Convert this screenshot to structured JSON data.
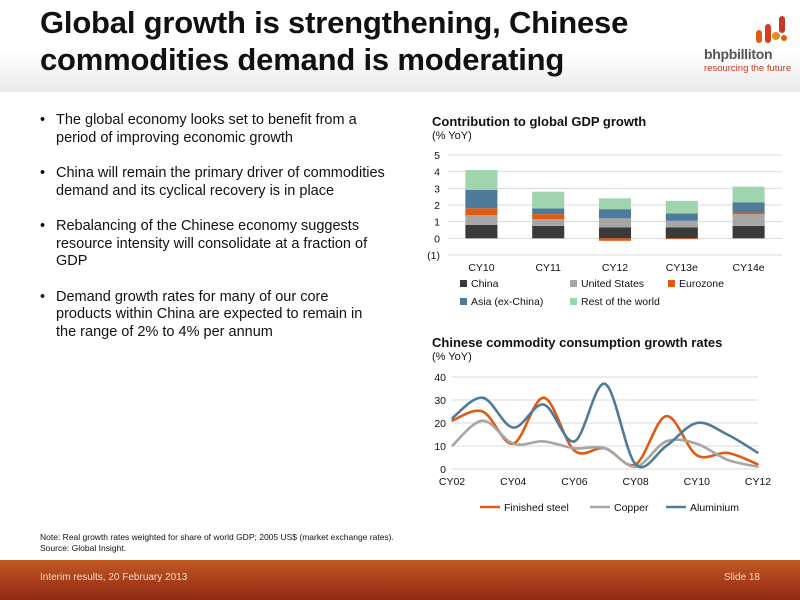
{
  "header": {
    "title": "Global growth is strengthening, Chinese commodities demand is moderating",
    "logo_word": "bhpbilliton",
    "logo_tagline": "resourcing the future"
  },
  "bullets": [
    "The global economy looks set to benefit from a period of improving economic growth",
    "China will remain the primary driver of commodities demand and its cyclical recovery is in place",
    "Rebalancing of the Chinese economy suggests resource intensity will consolidate at a fraction of GDP",
    "Demand growth rates for many of our core products within China are expected to remain in the range of 2% to 4% per annum"
  ],
  "chart_data": [
    {
      "type": "bar",
      "stacked": true,
      "title": "Contribution to global GDP growth",
      "ylabel": "(% YoY)",
      "categories": [
        "CY10",
        "CY11",
        "CY12",
        "CY13e",
        "CY14e"
      ],
      "ylim": [
        -1,
        5
      ],
      "yticks": [
        "(1)",
        "0",
        "1",
        "2",
        "3",
        "4",
        "5"
      ],
      "grid": true,
      "legend_position": "bottom",
      "series": [
        {
          "name": "China",
          "color": "#3a3a3a",
          "values": [
            0.8,
            0.75,
            0.65,
            0.65,
            0.75
          ]
        },
        {
          "name": "United States",
          "color": "#a6a6a6",
          "values": [
            0.6,
            0.4,
            0.55,
            0.4,
            0.7
          ]
        },
        {
          "name": "Eurozone",
          "color": "#e05a10",
          "values": [
            0.4,
            0.3,
            -0.15,
            -0.05,
            0.1
          ]
        },
        {
          "name": "Asia (ex-China)",
          "color": "#4f7b9a",
          "values": [
            1.1,
            0.35,
            0.55,
            0.45,
            0.6
          ]
        },
        {
          "name": "Rest of the world",
          "color": "#9fd4ae",
          "values": [
            1.2,
            1.0,
            0.65,
            0.75,
            0.95
          ]
        }
      ]
    },
    {
      "type": "line",
      "title": "Chinese commodity consumption growth rates",
      "ylabel": "(% YoY)",
      "x": [
        "CY02",
        "CY03",
        "CY04",
        "CY05",
        "CY06",
        "CY07",
        "CY08",
        "CY09",
        "CY10",
        "CY11",
        "CY12"
      ],
      "x_tick_labels": [
        "CY02",
        "CY04",
        "CY06",
        "CY08",
        "CY10",
        "CY12"
      ],
      "ylim": [
        0,
        40
      ],
      "yticks": [
        "0",
        "10",
        "20",
        "30",
        "40"
      ],
      "grid": true,
      "legend_position": "bottom",
      "series": [
        {
          "name": "Finished steel",
          "color": "#e05a10",
          "values": [
            21,
            25,
            11,
            31,
            8,
            9,
            2,
            23,
            6,
            7,
            2
          ]
        },
        {
          "name": "Copper",
          "color": "#a6a6a6",
          "values": [
            10,
            21,
            11,
            12,
            9,
            9,
            1,
            12,
            11,
            4,
            1
          ]
        },
        {
          "name": "Aluminium",
          "color": "#4f7b9a",
          "values": [
            22,
            31,
            18,
            28,
            12,
            37,
            2,
            10,
            20,
            15,
            7
          ]
        }
      ]
    }
  ],
  "note_line1": "Note:  Real growth rates weighted for share of world GDP; 2005 US$ (market exchange rates).",
  "note_line2": "Source:  Global Insight.",
  "footer": {
    "left": "Interim results, 20 February 2013",
    "right": "Slide 18"
  }
}
